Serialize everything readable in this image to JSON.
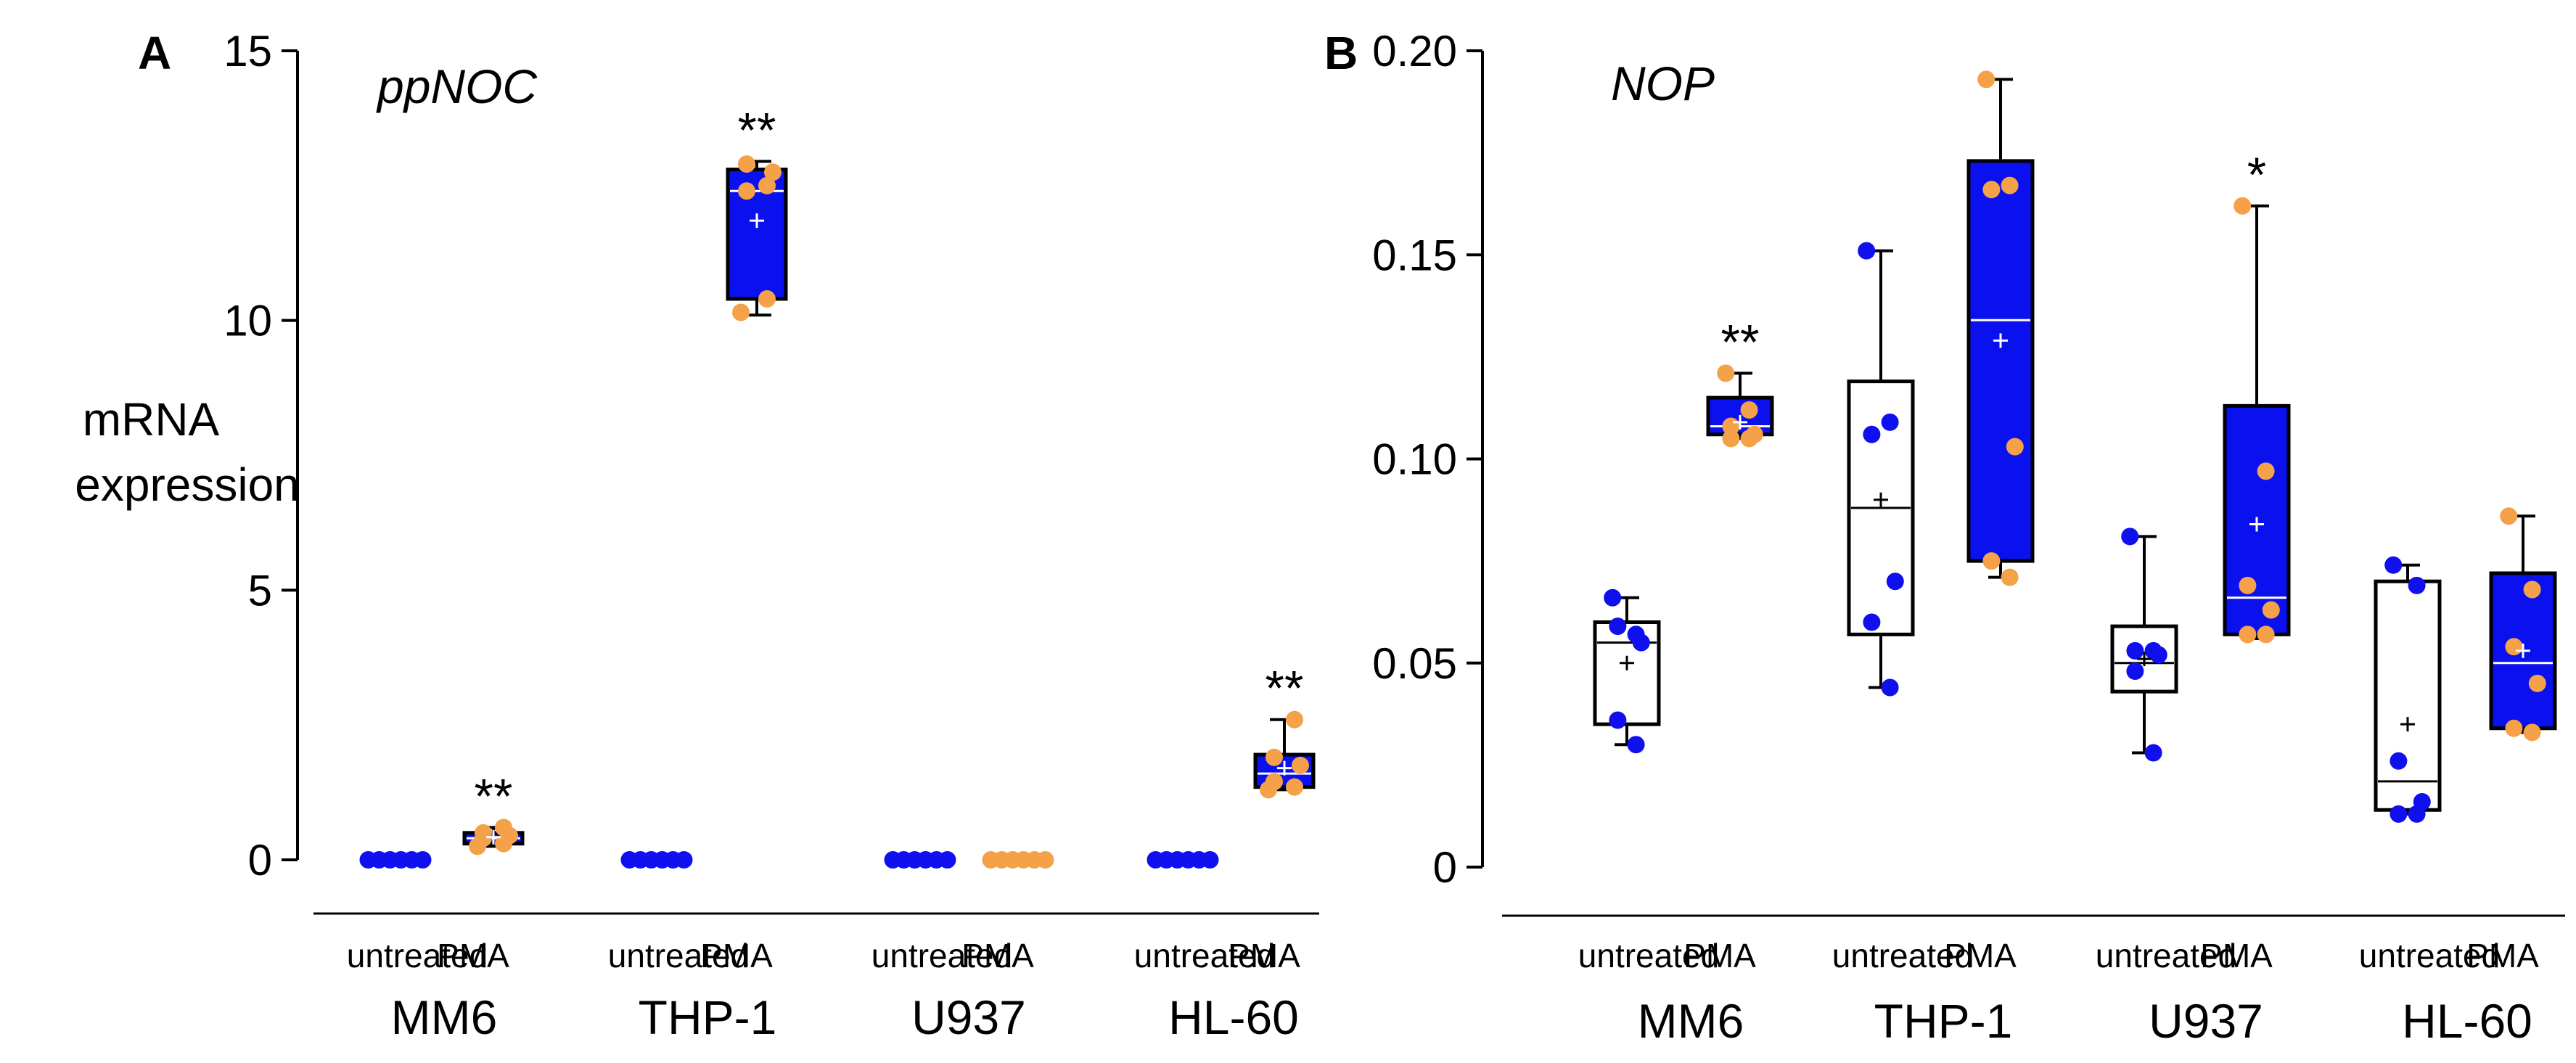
{
  "colors": {
    "untreated_point": "#1010ee",
    "pma_point": "#f4a14a",
    "pma_box_fill": "#0a10ee",
    "untreated_box_fill": "#ffffff",
    "axis": "#000000"
  },
  "chart_data": [
    {
      "type": "box",
      "panel": "A",
      "title": "ppNOC",
      "ylabel_line1": "mRNA",
      "ylabel_line2": "expression",
      "ylim": [
        0,
        15
      ],
      "yticks": [
        0,
        5,
        10,
        15
      ],
      "ytick_labels": [
        "0",
        "5",
        "10",
        "15"
      ],
      "groups": [
        {
          "cell_line": "MM6",
          "treatments": [
            {
              "label": "untreated",
              "points": [
                0,
                0,
                0,
                0,
                0,
                0
              ]
            },
            {
              "label": "PMA",
              "box": {
                "min": 0.25,
                "q1": 0.3,
                "median": 0.4,
                "q3": 0.5,
                "max": 0.6,
                "mean": 0.42
              },
              "points": [
                0.25,
                0.3,
                0.4,
                0.45,
                0.5,
                0.6
              ],
              "significance": "**"
            }
          ]
        },
        {
          "cell_line": "THP-1",
          "treatments": [
            {
              "label": "untreated",
              "points": [
                0,
                0,
                0,
                0,
                0,
                0
              ]
            },
            {
              "label": "PMA",
              "box": {
                "min": 10.1,
                "q1": 10.4,
                "median": 12.4,
                "q3": 12.8,
                "max": 12.95,
                "mean": 11.85
              },
              "points": [
                10.15,
                10.4,
                12.4,
                12.75,
                12.9,
                12.5
              ],
              "significance": "**"
            }
          ]
        },
        {
          "cell_line": "U937",
          "treatments": [
            {
              "label": "untreated",
              "points": [
                0,
                0,
                0,
                0,
                0,
                0
              ]
            },
            {
              "label": "PMA",
              "points": [
                0,
                0,
                0,
                0,
                0,
                0
              ]
            }
          ]
        },
        {
          "cell_line": "HL-60",
          "treatments": [
            {
              "label": "untreated",
              "points": [
                0,
                0,
                0,
                0,
                0,
                0
              ]
            },
            {
              "label": "PMA",
              "box": {
                "min": 1.3,
                "q1": 1.35,
                "median": 1.6,
                "q3": 1.95,
                "max": 2.6,
                "mean": 1.7
              },
              "points": [
                1.3,
                1.35,
                1.45,
                1.75,
                1.9,
                2.6
              ],
              "significance": "**"
            }
          ]
        }
      ]
    },
    {
      "type": "box",
      "panel": "B",
      "title": "NOP",
      "ylim": [
        0,
        0.2
      ],
      "yticks": [
        0,
        0.05,
        0.1,
        0.15,
        0.2
      ],
      "ytick_labels": [
        "0",
        "0.05",
        "0.10",
        "0.15",
        "0.20"
      ],
      "groups": [
        {
          "cell_line": "MM6",
          "treatments": [
            {
              "label": "untreated",
              "box": {
                "min": 0.03,
                "q1": 0.035,
                "median": 0.055,
                "q3": 0.06,
                "max": 0.066,
                "mean": 0.05
              },
              "points": [
                0.066,
                0.057,
                0.059,
                0.055,
                0.036,
                0.03
              ]
            },
            {
              "label": "PMA",
              "box": {
                "min": 0.105,
                "q1": 0.106,
                "median": 0.108,
                "q3": 0.115,
                "max": 0.121,
                "mean": 0.109
              },
              "points": [
                0.121,
                0.112,
                0.108,
                0.106,
                0.105,
                0.105
              ],
              "significance": "**"
            }
          ]
        },
        {
          "cell_line": "THP-1",
          "treatments": [
            {
              "label": "untreated",
              "box": {
                "min": 0.044,
                "q1": 0.057,
                "median": 0.088,
                "q3": 0.119,
                "max": 0.151,
                "mean": 0.09
              },
              "points": [
                0.151,
                0.109,
                0.106,
                0.07,
                0.06,
                0.044
              ]
            },
            {
              "label": "PMA",
              "box": {
                "min": 0.071,
                "q1": 0.075,
                "median": 0.134,
                "q3": 0.173,
                "max": 0.193,
                "mean": 0.129
              },
              "points": [
                0.193,
                0.167,
                0.166,
                0.103,
                0.075,
                0.071
              ]
            }
          ]
        },
        {
          "cell_line": "U937",
          "treatments": [
            {
              "label": "untreated",
              "box": {
                "min": 0.028,
                "q1": 0.043,
                "median": 0.05,
                "q3": 0.059,
                "max": 0.081,
                "mean": 0.051
              },
              "points": [
                0.081,
                0.053,
                0.053,
                0.052,
                0.048,
                0.028
              ]
            },
            {
              "label": "PMA",
              "box": {
                "min": 0.056,
                "q1": 0.057,
                "median": 0.066,
                "q3": 0.113,
                "max": 0.162,
                "mean": 0.084
              },
              "points": [
                0.162,
                0.097,
                0.069,
                0.063,
                0.057,
                0.057
              ],
              "significance": "*"
            }
          ]
        },
        {
          "cell_line": "HL-60",
          "treatments": [
            {
              "label": "untreated",
              "box": {
                "min": 0.013,
                "q1": 0.014,
                "median": 0.021,
                "q3": 0.07,
                "max": 0.074,
                "mean": 0.035
              },
              "points": [
                0.074,
                0.069,
                0.026,
                0.016,
                0.013,
                0.013
              ]
            },
            {
              "label": "PMA",
              "box": {
                "min": 0.033,
                "q1": 0.034,
                "median": 0.05,
                "q3": 0.072,
                "max": 0.086,
                "mean": 0.053
              },
              "points": [
                0.086,
                0.068,
                0.054,
                0.045,
                0.034,
                0.033
              ]
            }
          ]
        }
      ]
    }
  ]
}
